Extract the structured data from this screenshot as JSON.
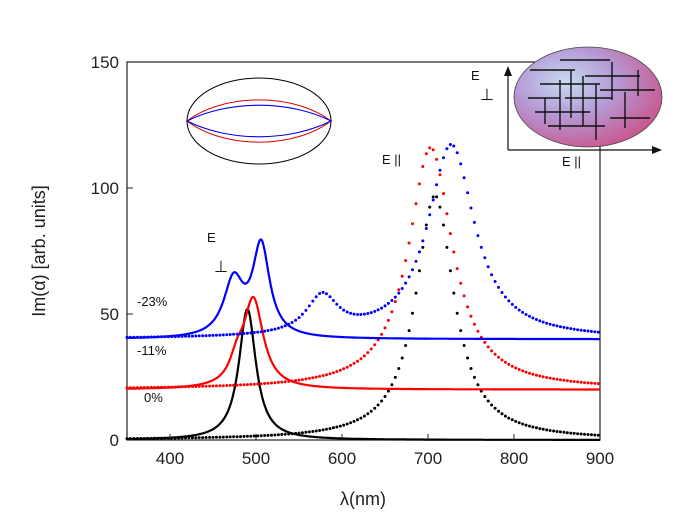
{
  "chart_data": {
    "type": "line",
    "title": "",
    "xlabel": "λ(nm)",
    "ylabel": "Im(α) [arb. units]",
    "xlim": [
      350,
      900
    ],
    "ylim": [
      0,
      150
    ],
    "xticks": [
      400,
      500,
      600,
      700,
      800,
      900
    ],
    "yticks": [
      0,
      50,
      100,
      150
    ],
    "xtick_labels": [
      "400",
      "500",
      "600",
      "700",
      "800",
      "900"
    ],
    "ytick_labels": [
      "0",
      "50",
      "100",
      "150"
    ],
    "series": [
      {
        "name": "0% E⊥",
        "color": "#000000",
        "style": "solid",
        "offset": 0,
        "peaks": [
          {
            "x0": 490,
            "amp": 52,
            "w": 12
          }
        ]
      },
      {
        "name": "0% E||",
        "color": "#000000",
        "style": "dotted",
        "offset": 0,
        "peaks": [
          {
            "x0": 708,
            "amp": 97,
            "w": 27
          }
        ]
      },
      {
        "name": "-11% E⊥",
        "color": "#ff0000",
        "style": "solid",
        "offset": 20,
        "peaks": [
          {
            "x0": 497,
            "amp": 35,
            "w": 14
          },
          {
            "x0": 478,
            "amp": 8,
            "w": 10
          }
        ]
      },
      {
        "name": "-11% E||",
        "color": "#ff0000",
        "style": "dotted",
        "offset": 20,
        "peaks": [
          {
            "x0": 703,
            "amp": 96,
            "w": 31
          }
        ]
      },
      {
        "name": "-23% E⊥",
        "color": "#0000ff",
        "style": "solid",
        "offset": 40,
        "peaks": [
          {
            "x0": 506,
            "amp": 36,
            "w": 12
          },
          {
            "x0": 474,
            "amp": 22,
            "w": 14
          }
        ]
      },
      {
        "name": "-23% E||",
        "color": "#0000ff",
        "style": "dotted",
        "offset": 40,
        "peaks": [
          {
            "x0": 727,
            "amp": 77,
            "w": 33
          },
          {
            "x0": 577,
            "amp": 15,
            "w": 22
          }
        ]
      }
    ],
    "annotations": {
      "label_0": "0%",
      "label_11": "-11%",
      "label_23": "-23%",
      "e_perp_letter": "E",
      "e_perp_symbol": "⊥",
      "e_par": "E ||",
      "inset_e_perp_letter": "E",
      "inset_e_perp_symbol": "⊥",
      "inset_e_par": "E ||"
    }
  }
}
